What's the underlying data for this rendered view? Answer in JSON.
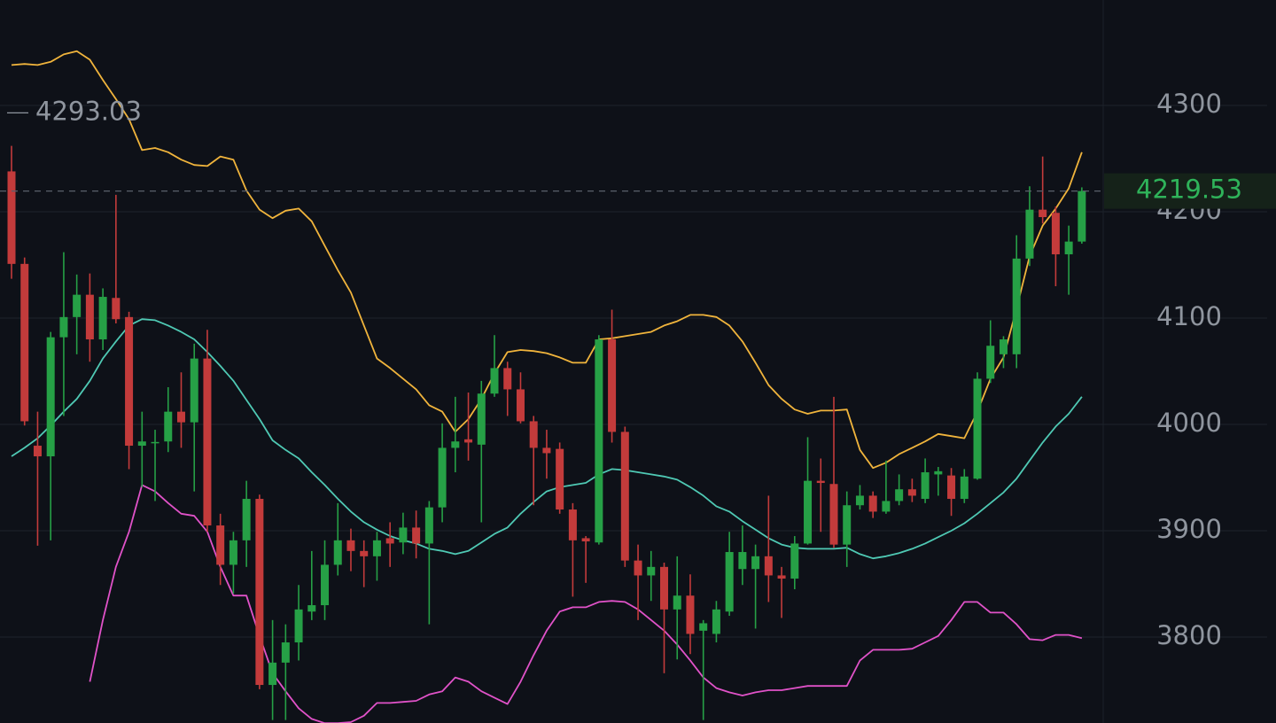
{
  "chart_data": {
    "type": "candlestick",
    "open": [
      4238,
      4151,
      3980,
      3970,
      4082,
      4101,
      4122,
      4080,
      4119,
      4101,
      3980,
      3983,
      3984,
      4012,
      4002,
      4062,
      3905,
      3868,
      3891,
      3930,
      3755,
      3776,
      3795,
      3824,
      3830,
      3868,
      3891,
      3881,
      3876,
      3893,
      3889,
      3903,
      3888,
      3922,
      3978,
      3986,
      3981,
      4029,
      4053,
      4033,
      4003,
      3978,
      3977,
      3920,
      3893,
      3889,
      4080,
      3993,
      3872,
      3858,
      3866,
      3826,
      3839,
      3806,
      3803,
      3824,
      3864,
      3864,
      3876,
      3858,
      3855,
      3888,
      3947,
      3944,
      3887,
      3924,
      3933,
      3918,
      3928,
      3939,
      3930,
      3953,
      3952,
      3930,
      3949,
      4043,
      4066,
      4066,
      4156,
      4202,
      4199,
      4160,
      4172
    ],
    "high": [
      4262,
      4157,
      4012,
      4087,
      4162,
      4141,
      4142,
      4128,
      4216,
      4106,
      4012,
      3995,
      4035,
      4049,
      4076,
      4089,
      3916,
      3899,
      3947,
      3934,
      3816,
      3812,
      3849,
      3881,
      3891,
      3926,
      3902,
      3891,
      3899,
      3908,
      3917,
      3919,
      3928,
      4001,
      4026,
      4030,
      4041,
      4084,
      4059,
      4049,
      4008,
      3995,
      3983,
      3926,
      3895,
      4084,
      4108,
      3998,
      3887,
      3881,
      3870,
      3876,
      3859,
      3816,
      3834,
      3899,
      3905,
      3887,
      3933,
      3866,
      3895,
      3988,
      3968,
      4026,
      3937,
      3943,
      3937,
      3966,
      3953,
      3949,
      3968,
      3960,
      3959,
      3958,
      4049,
      4098,
      4083,
      4178,
      4224,
      4252,
      4205,
      4187,
      4223
    ],
    "low": [
      4137,
      3999,
      3886,
      3891,
      4008,
      4066,
      4059,
      4070,
      4095,
      3958,
      3941,
      3928,
      3974,
      3978,
      3937,
      3899,
      3849,
      3841,
      3866,
      3751,
      3722,
      3722,
      3778,
      3816,
      3816,
      3858,
      3862,
      3847,
      3853,
      3866,
      3878,
      3874,
      3812,
      3908,
      3955,
      3966,
      3908,
      4026,
      4008,
      4001,
      3924,
      3949,
      3916,
      3838,
      3851,
      3887,
      3983,
      3866,
      3816,
      3834,
      3766,
      3779,
      3784,
      3722,
      3795,
      3820,
      3849,
      3808,
      3833,
      3818,
      3845,
      3887,
      3899,
      3884,
      3866,
      3920,
      3912,
      3916,
      3924,
      3927,
      3926,
      3933,
      3914,
      3926,
      3948,
      4039,
      4053,
      4053,
      4149,
      4189,
      4130,
      4122,
      4170
    ],
    "close": [
      4151,
      4003,
      3970,
      4082,
      4101,
      4122,
      4080,
      4120,
      4099,
      3980,
      3984,
      3983.5,
      4012,
      4002,
      4062,
      3905,
      3868,
      3891,
      3930,
      3755,
      3776,
      3795,
      3826,
      3830,
      3868,
      3891,
      3881,
      3876,
      3891,
      3888,
      3903,
      3888,
      3922,
      3978,
      3984,
      3983,
      4029,
      4053,
      4033,
      4003,
      3978,
      3973,
      3920,
      3891,
      3890,
      4080,
      3993,
      3872,
      3858,
      3866,
      3826,
      3839,
      3803,
      3813,
      3826,
      3880,
      3880,
      3876,
      3858,
      3855,
      3888,
      3947,
      3945,
      3887,
      3924,
      3933,
      3918,
      3928,
      3939,
      3933,
      3955,
      3956,
      3930,
      3951,
      4043,
      4074,
      4080,
      4156,
      4202,
      4195,
      4160,
      4172,
      4219.53
    ],
    "up_color": "#26a046",
    "down_color": "#c33b3b",
    "bands": [
      {
        "color": "#f0b43c",
        "values": [
          4338,
          4339,
          4338,
          4341,
          4348,
          4351,
          4343,
          4324,
          4306,
          4287,
          4258,
          4260,
          4256,
          4249,
          4244,
          4243,
          4252,
          4249,
          4220,
          4202,
          4194,
          4201,
          4203,
          4191,
          4168,
          4145,
          4124,
          4093,
          4062,
          4053,
          4043,
          4033,
          4018,
          4012,
          3993,
          4005,
          4024,
          4048,
          4068,
          4070,
          4069,
          4067,
          4063,
          4058,
          4058,
          4080,
          4081,
          4083,
          4085,
          4087,
          4093,
          4097,
          4103,
          4103,
          4101,
          4093,
          4078,
          4058,
          4037,
          4024,
          4014,
          4010,
          4013,
          4013,
          4014,
          3976,
          3959,
          3964,
          3972,
          3978,
          3984,
          3991,
          3989,
          3987,
          4012,
          4043,
          4063,
          4109,
          4158,
          4187,
          4203,
          4222,
          4256
        ]
      },
      {
        "color": "#4fc9b4",
        "values": [
          3970,
          3978,
          3987,
          3999,
          4012,
          4024,
          4041,
          4062,
          4078,
          4093,
          4099,
          4098,
          4093,
          4087,
          4080,
          4068,
          4055,
          4041,
          4023,
          4005,
          3985,
          3976,
          3968,
          3955,
          3943,
          3930,
          3918,
          3908,
          3901,
          3895,
          3891,
          3888,
          3883,
          3881,
          3878,
          3881,
          3889,
          3897,
          3903,
          3916,
          3927,
          3937,
          3941,
          3943,
          3945,
          3953,
          3958,
          3957,
          3955,
          3953,
          3951,
          3948,
          3941,
          3933,
          3923,
          3918,
          3909,
          3901,
          3893,
          3887,
          3884,
          3883,
          3883,
          3883,
          3884,
          3878,
          3874,
          3876,
          3879,
          3883,
          3888,
          3894,
          3900,
          3907,
          3916,
          3926,
          3936,
          3949,
          3966,
          3983,
          3998,
          4010,
          4026
        ]
      },
      {
        "color": "#e052c8",
        "values": [
          null,
          null,
          null,
          null,
          null,
          null,
          3758,
          3816,
          3866,
          3899,
          3943,
          3937,
          3926,
          3916,
          3914,
          3899,
          3866,
          3839,
          3839,
          3801,
          3766,
          3749,
          3733,
          3723,
          3719,
          3719,
          3720,
          3726,
          3738,
          3738,
          3739,
          3740,
          3746,
          3749,
          3762,
          3758,
          3749,
          3743,
          3737,
          3758,
          3783,
          3806,
          3824,
          3828,
          3828,
          3833,
          3834,
          3833,
          3826,
          3816,
          3806,
          3793,
          3778,
          3762,
          3752,
          3748,
          3745,
          3748,
          3750,
          3750,
          3752,
          3754,
          3754,
          3754,
          3754,
          3778,
          3788,
          3788,
          3788,
          3789,
          3795,
          3801,
          3816,
          3833,
          3833,
          3823,
          3823,
          3812,
          3798,
          3797,
          3802,
          3802,
          3799
        ]
      }
    ],
    "ylim": [
      3719.2,
      4399.2
    ],
    "yticks": [
      3800,
      3900,
      4000,
      4100,
      4200,
      4300
    ],
    "grid": true,
    "last_price": 4219.53,
    "max_label": 4293.03
  }
}
